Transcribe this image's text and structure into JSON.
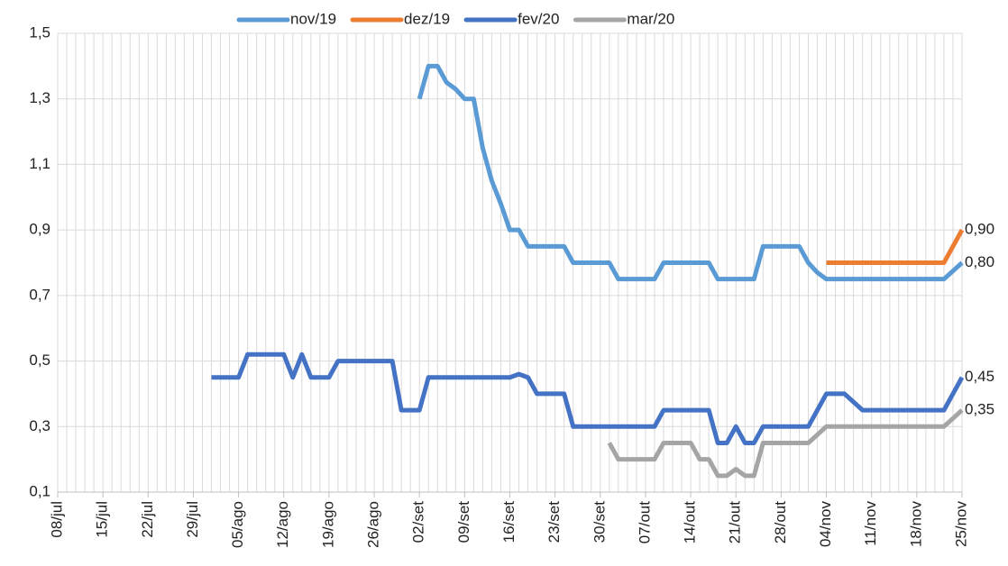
{
  "chart_data": {
    "type": "line",
    "categories": [
      "08/jul",
      null,
      null,
      null,
      null,
      "15/jul",
      null,
      null,
      null,
      null,
      "22/jul",
      null,
      null,
      null,
      null,
      "29/jul",
      null,
      null,
      null,
      null,
      "05/ago",
      null,
      null,
      null,
      null,
      "12/ago",
      null,
      null,
      null,
      null,
      "19/ago",
      null,
      null,
      null,
      null,
      "26/ago",
      null,
      null,
      null,
      null,
      "02/set",
      null,
      null,
      null,
      null,
      "09/set",
      null,
      null,
      null,
      null,
      "16/set",
      null,
      null,
      null,
      null,
      "23/set",
      null,
      null,
      null,
      null,
      "30/set",
      null,
      null,
      null,
      null,
      "07/out",
      null,
      null,
      null,
      null,
      "14/out",
      null,
      null,
      null,
      null,
      "21/out",
      null,
      null,
      null,
      null,
      "28/out",
      null,
      null,
      null,
      null,
      "04/nov",
      null,
      null,
      null,
      null,
      "11/nov",
      null,
      null,
      null,
      null,
      "18/nov",
      null,
      null,
      null,
      null,
      "25/nov"
    ],
    "series": [
      {
        "name": "nov/19",
        "color": "#5b9bd5",
        "values": [
          null,
          null,
          null,
          null,
          null,
          null,
          null,
          null,
          null,
          null,
          null,
          null,
          null,
          null,
          null,
          null,
          null,
          null,
          null,
          null,
          null,
          null,
          null,
          null,
          null,
          null,
          null,
          null,
          null,
          null,
          null,
          null,
          null,
          null,
          null,
          null,
          null,
          null,
          null,
          null,
          1.3,
          1.4,
          1.4,
          1.35,
          1.33,
          1.3,
          1.3,
          1.15,
          1.05,
          0.98,
          0.9,
          0.9,
          0.85,
          0.85,
          0.85,
          0.85,
          0.85,
          0.8,
          0.8,
          0.8,
          0.8,
          0.8,
          0.75,
          0.75,
          0.75,
          0.75,
          0.75,
          0.8,
          0.8,
          0.8,
          0.8,
          0.8,
          0.8,
          0.75,
          0.75,
          0.75,
          0.75,
          0.75,
          0.85,
          0.85,
          0.85,
          0.85,
          0.85,
          0.8,
          0.77,
          0.75,
          0.75,
          0.75,
          0.75,
          0.75,
          0.75,
          0.75,
          0.75,
          0.75,
          0.75,
          0.75,
          0.75,
          0.75,
          0.75,
          0.775,
          0.8
        ],
        "value_labels": [
          null,
          null,
          null,
          null,
          null,
          null,
          null,
          null,
          null,
          null,
          null,
          null,
          null,
          null,
          null,
          null,
          null,
          null,
          null,
          null,
          null,
          null,
          null,
          null,
          null,
          null,
          null,
          null,
          null,
          null,
          null,
          null,
          null,
          null,
          null,
          null,
          null,
          null,
          null,
          null,
          null,
          null,
          null,
          null,
          null,
          null,
          null,
          null,
          null,
          null,
          null,
          null,
          null,
          null,
          null,
          null,
          null,
          null,
          null,
          null,
          null,
          null,
          null,
          null,
          null,
          null,
          null,
          null,
          null,
          null,
          null,
          null,
          null,
          null,
          null,
          null,
          null,
          null,
          null,
          null,
          null,
          null,
          null,
          null,
          null,
          null,
          null,
          null,
          null,
          null,
          null,
          null,
          null,
          null,
          null,
          null,
          null,
          null,
          null,
          null,
          "0,80"
        ]
      },
      {
        "name": "dez/19",
        "color": "#ed7d31",
        "values": [
          null,
          null,
          null,
          null,
          null,
          null,
          null,
          null,
          null,
          null,
          null,
          null,
          null,
          null,
          null,
          null,
          null,
          null,
          null,
          null,
          null,
          null,
          null,
          null,
          null,
          null,
          null,
          null,
          null,
          null,
          null,
          null,
          null,
          null,
          null,
          null,
          null,
          null,
          null,
          null,
          null,
          null,
          null,
          null,
          null,
          null,
          null,
          null,
          null,
          null,
          null,
          null,
          null,
          null,
          null,
          null,
          null,
          null,
          null,
          null,
          null,
          null,
          null,
          null,
          null,
          null,
          null,
          null,
          null,
          null,
          null,
          null,
          null,
          null,
          null,
          null,
          null,
          null,
          null,
          null,
          null,
          null,
          null,
          null,
          null,
          0.8,
          0.8,
          0.8,
          0.8,
          0.8,
          0.8,
          0.8,
          0.8,
          0.8,
          0.8,
          0.8,
          0.8,
          0.8,
          0.8,
          0.85,
          0.9
        ],
        "value_labels": [
          null,
          null,
          null,
          null,
          null,
          null,
          null,
          null,
          null,
          null,
          null,
          null,
          null,
          null,
          null,
          null,
          null,
          null,
          null,
          null,
          null,
          null,
          null,
          null,
          null,
          null,
          null,
          null,
          null,
          null,
          null,
          null,
          null,
          null,
          null,
          null,
          null,
          null,
          null,
          null,
          null,
          null,
          null,
          null,
          null,
          null,
          null,
          null,
          null,
          null,
          null,
          null,
          null,
          null,
          null,
          null,
          null,
          null,
          null,
          null,
          null,
          null,
          null,
          null,
          null,
          null,
          null,
          null,
          null,
          null,
          null,
          null,
          null,
          null,
          null,
          null,
          null,
          null,
          null,
          null,
          null,
          null,
          null,
          null,
          null,
          null,
          null,
          null,
          null,
          null,
          null,
          null,
          null,
          null,
          null,
          null,
          null,
          null,
          null,
          null,
          "0,90"
        ]
      },
      {
        "name": "fev/20",
        "color": "#4472c4",
        "values": [
          null,
          null,
          null,
          null,
          null,
          null,
          null,
          null,
          null,
          null,
          null,
          null,
          null,
          null,
          null,
          null,
          null,
          0.45,
          0.45,
          0.45,
          0.45,
          0.52,
          0.52,
          0.52,
          0.52,
          0.52,
          0.45,
          0.52,
          0.45,
          0.45,
          0.45,
          0.5,
          0.5,
          0.5,
          0.5,
          0.5,
          0.5,
          0.5,
          0.35,
          0.35,
          0.35,
          0.45,
          0.45,
          0.45,
          0.45,
          0.45,
          0.45,
          0.45,
          0.45,
          0.45,
          0.45,
          0.46,
          0.45,
          0.4,
          0.4,
          0.4,
          0.4,
          0.3,
          0.3,
          0.3,
          0.3,
          0.3,
          0.3,
          0.3,
          0.3,
          0.3,
          0.3,
          0.35,
          0.35,
          0.35,
          0.35,
          0.35,
          0.35,
          0.25,
          0.25,
          0.3,
          0.25,
          0.25,
          0.3,
          0.3,
          0.3,
          0.3,
          0.3,
          0.3,
          0.35,
          0.4,
          0.4,
          0.4,
          0.375,
          0.35,
          0.35,
          0.35,
          0.35,
          0.35,
          0.35,
          0.35,
          0.35,
          0.35,
          0.35,
          0.4,
          0.45
        ],
        "value_labels": [
          null,
          null,
          null,
          null,
          null,
          null,
          null,
          null,
          null,
          null,
          null,
          null,
          null,
          null,
          null,
          null,
          null,
          null,
          null,
          null,
          null,
          null,
          null,
          null,
          null,
          null,
          null,
          null,
          null,
          null,
          null,
          null,
          null,
          null,
          null,
          null,
          null,
          null,
          null,
          null,
          null,
          null,
          null,
          null,
          null,
          null,
          null,
          null,
          null,
          null,
          null,
          null,
          null,
          null,
          null,
          null,
          null,
          null,
          null,
          null,
          null,
          null,
          null,
          null,
          null,
          null,
          null,
          null,
          null,
          null,
          null,
          null,
          null,
          null,
          null,
          null,
          null,
          null,
          null,
          null,
          null,
          null,
          null,
          null,
          null,
          null,
          null,
          null,
          null,
          null,
          null,
          null,
          null,
          null,
          null,
          null,
          null,
          null,
          null,
          null,
          "0,45"
        ]
      },
      {
        "name": "mar/20",
        "color": "#a5a5a5",
        "values": [
          null,
          null,
          null,
          null,
          null,
          null,
          null,
          null,
          null,
          null,
          null,
          null,
          null,
          null,
          null,
          null,
          null,
          null,
          null,
          null,
          null,
          null,
          null,
          null,
          null,
          null,
          null,
          null,
          null,
          null,
          null,
          null,
          null,
          null,
          null,
          null,
          null,
          null,
          null,
          null,
          null,
          null,
          null,
          null,
          null,
          null,
          null,
          null,
          null,
          null,
          null,
          null,
          null,
          null,
          null,
          null,
          null,
          null,
          null,
          null,
          null,
          0.25,
          0.2,
          0.2,
          0.2,
          0.2,
          0.2,
          0.25,
          0.25,
          0.25,
          0.25,
          0.2,
          0.2,
          0.15,
          0.15,
          0.17,
          0.15,
          0.15,
          0.25,
          0.25,
          0.25,
          0.25,
          0.25,
          0.25,
          0.275,
          0.3,
          0.3,
          0.3,
          0.3,
          0.3,
          0.3,
          0.3,
          0.3,
          0.3,
          0.3,
          0.3,
          0.3,
          0.3,
          0.3,
          0.325,
          0.35
        ],
        "value_labels": [
          null,
          null,
          null,
          null,
          null,
          null,
          null,
          null,
          null,
          null,
          null,
          null,
          null,
          null,
          null,
          null,
          null,
          null,
          null,
          null,
          null,
          null,
          null,
          null,
          null,
          null,
          null,
          null,
          null,
          null,
          null,
          null,
          null,
          null,
          null,
          null,
          null,
          null,
          null,
          null,
          null,
          null,
          null,
          null,
          null,
          null,
          null,
          null,
          null,
          null,
          null,
          null,
          null,
          null,
          null,
          null,
          null,
          null,
          null,
          null,
          null,
          null,
          null,
          null,
          null,
          null,
          null,
          null,
          null,
          null,
          null,
          null,
          null,
          null,
          null,
          null,
          null,
          null,
          null,
          null,
          null,
          null,
          null,
          null,
          null,
          null,
          null,
          null,
          null,
          null,
          null,
          null,
          null,
          null,
          null,
          null,
          null,
          null,
          null,
          null,
          "0,35"
        ]
      }
    ],
    "ylim": [
      0.1,
      1.5
    ],
    "yticks": [
      {
        "value": 0.1,
        "label": "0,1"
      },
      {
        "value": 0.3,
        "label": "0,3"
      },
      {
        "value": 0.5,
        "label": "0,5"
      },
      {
        "value": 0.7,
        "label": "0,7"
      },
      {
        "value": 0.9,
        "label": "0,9"
      },
      {
        "value": 1.1,
        "label": "1,1"
      },
      {
        "value": 1.3,
        "label": "1,3"
      },
      {
        "value": 1.5,
        "label": "1,5"
      }
    ],
    "grid": true,
    "legend": "top"
  }
}
